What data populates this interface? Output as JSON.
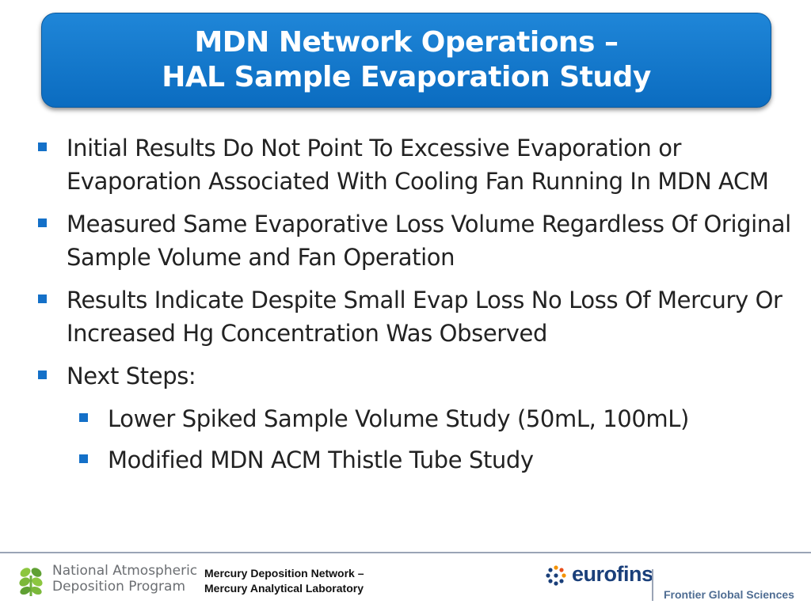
{
  "title": {
    "line1": "MDN Network Operations –",
    "line2": "HAL Sample Evaporation Study"
  },
  "bullets": [
    {
      "text": "Initial Results Do Not Point To Excessive Evaporation or Evaporation Associated With Cooling Fan Running In MDN ACM",
      "level": 1
    },
    {
      "text": "Measured Same Evaporative Loss Volume Regardless Of Original Sample Volume and Fan Operation",
      "level": 1
    },
    {
      "text": "Results Indicate Despite Small Evap Loss No Loss Of Mercury Or Increased Hg Concentration Was Observed",
      "level": 1
    },
    {
      "text": "Next Steps:",
      "level": 1
    },
    {
      "text": "Lower Spiked Sample Volume Study (50mL, 100mL)",
      "level": 2
    },
    {
      "text": "Modified MDN ACM Thistle Tube Study",
      "level": 2
    }
  ],
  "footer": {
    "nadp": {
      "line1": "National Atmospheric",
      "line2": "Deposition Program"
    },
    "center": {
      "line1": "Mercury Deposition Network –",
      "line2": "Mercury Analytical Laboratory"
    },
    "eurofins": "eurofins",
    "frontier": "Frontier Global Sciences"
  },
  "colors": {
    "title_bg": "#0b6cc0",
    "bullet_marker": "#1470c8",
    "eurofins_text": "#1a3f7a",
    "frontier_text": "#4f6d93"
  }
}
